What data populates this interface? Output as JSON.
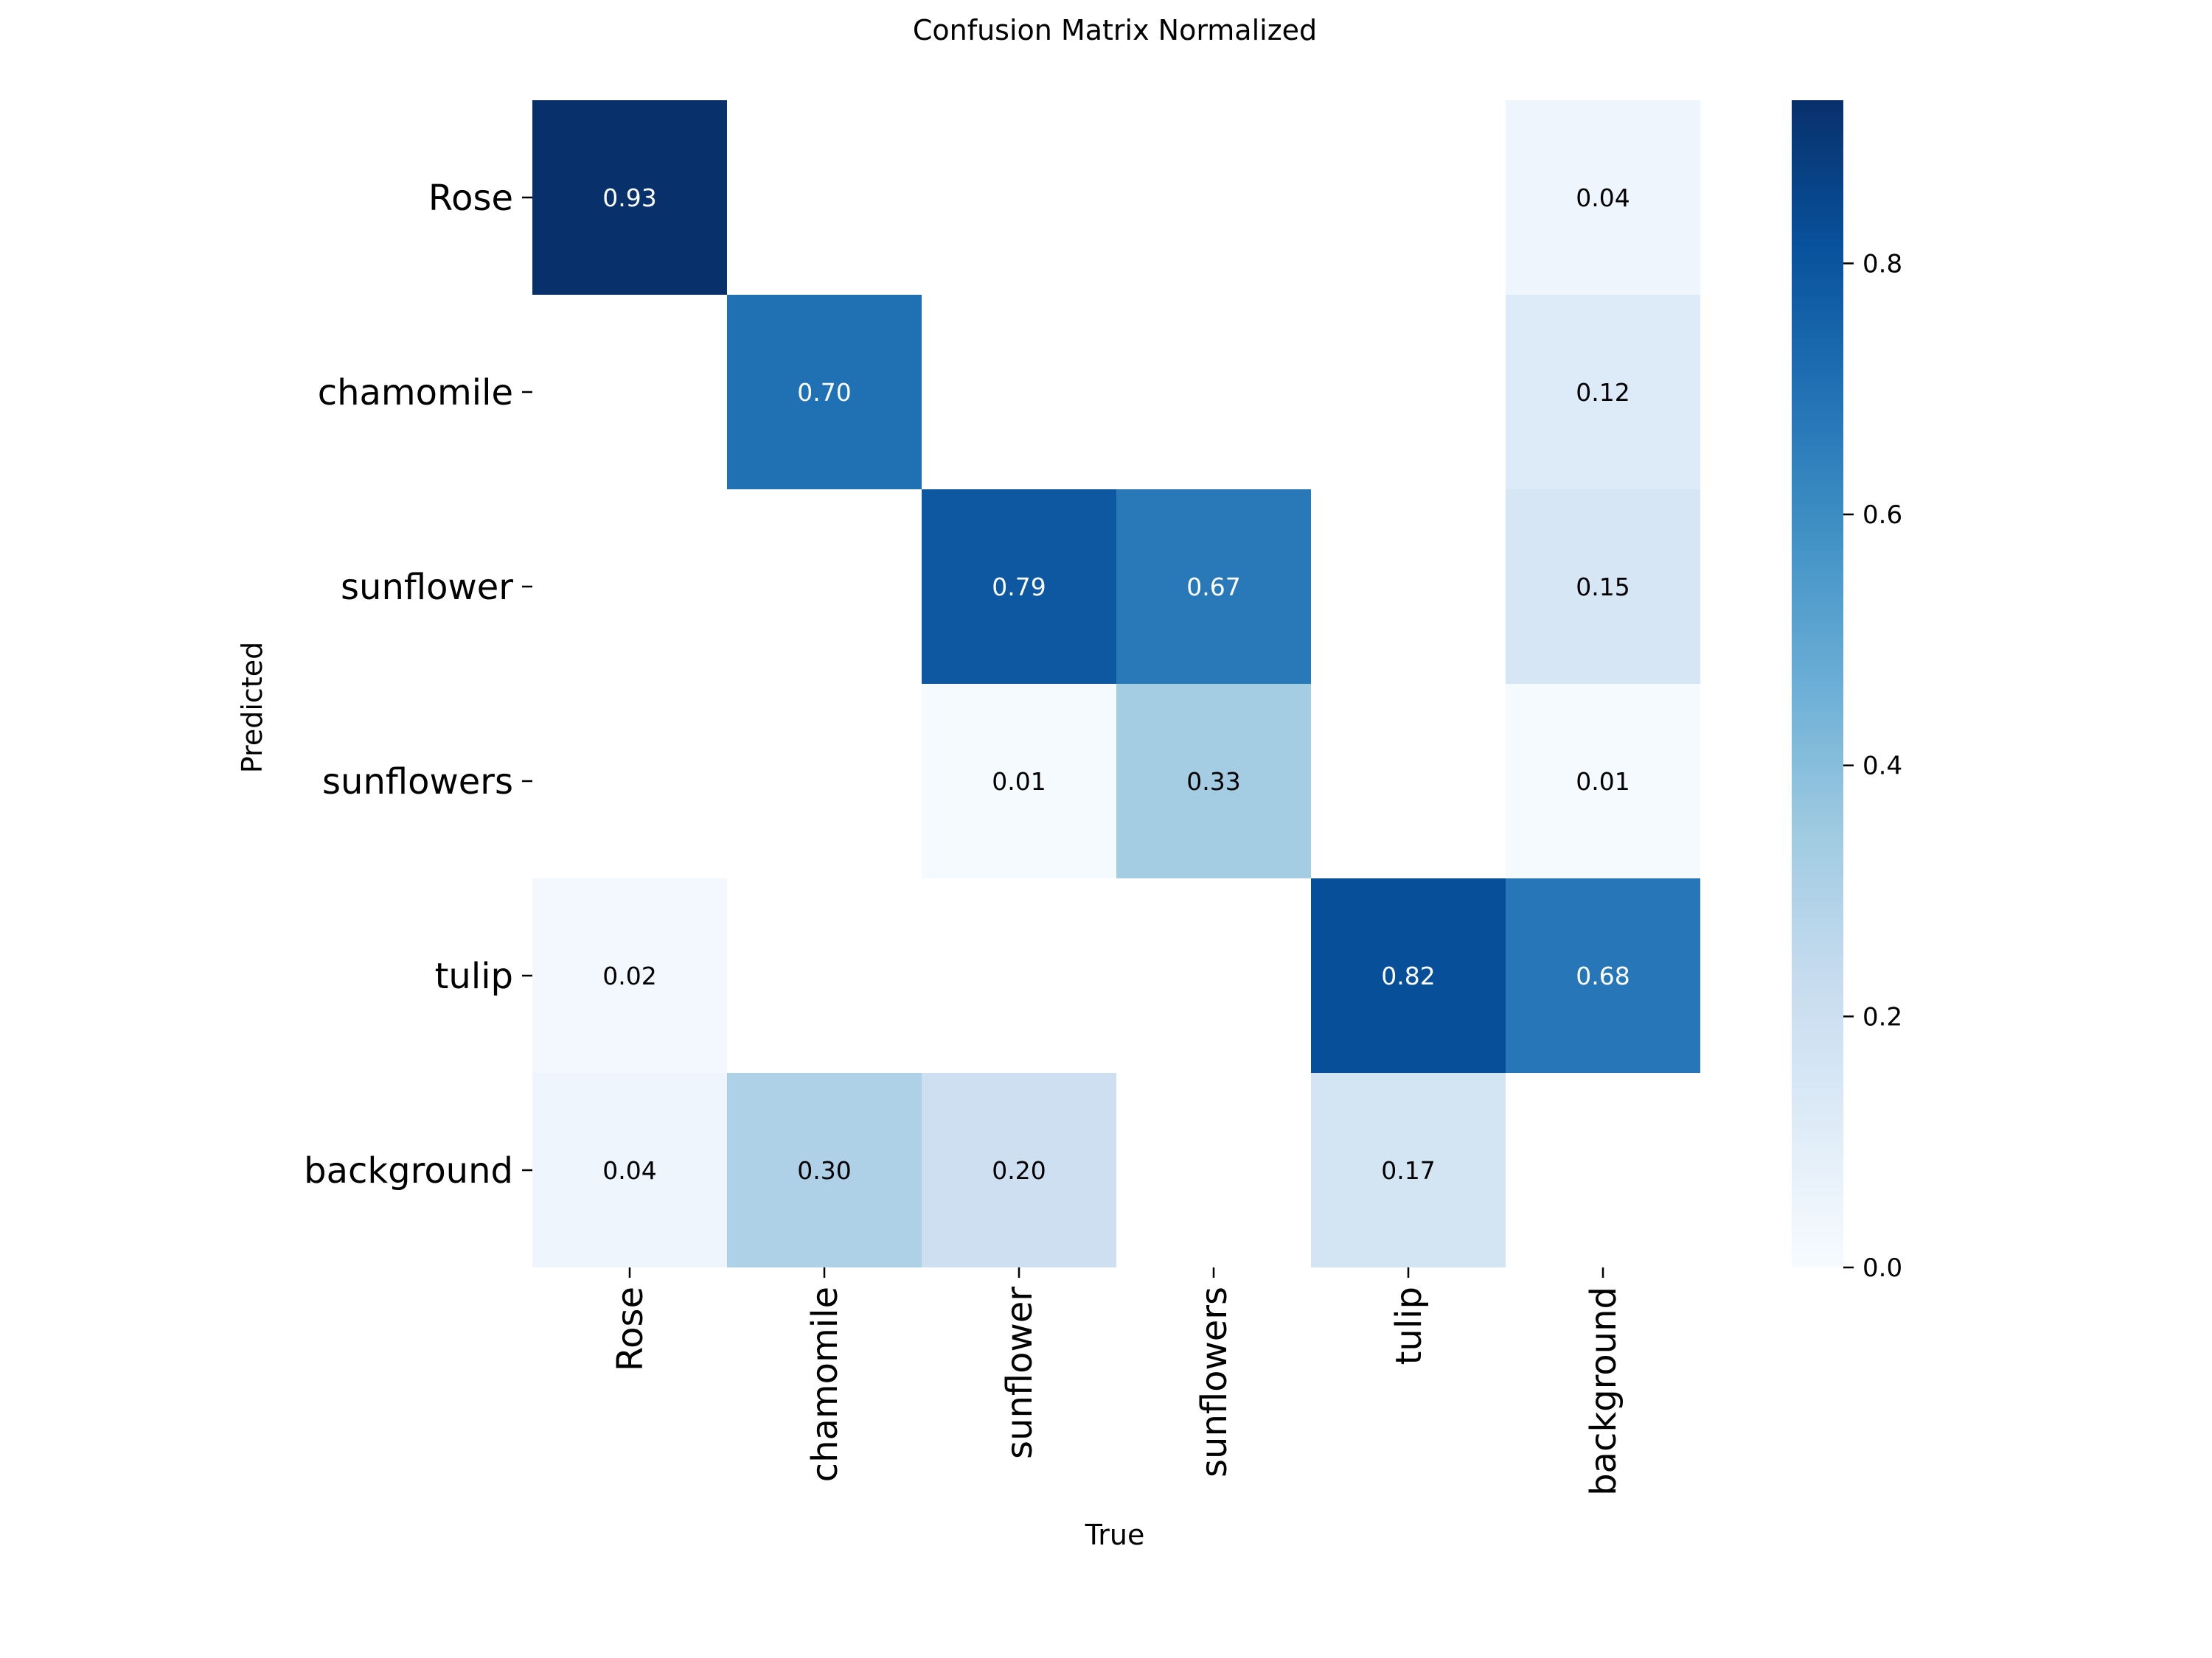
{
  "chart_data": {
    "type": "heatmap",
    "title": "Confusion Matrix Normalized",
    "xlabel": "True",
    "ylabel": "Predicted",
    "x_categories": [
      "Rose",
      "chamomile",
      "sunflower",
      "sunflowers",
      "tulip",
      "background"
    ],
    "y_categories": [
      "Rose",
      "chamomile",
      "sunflower",
      "sunflowers",
      "tulip",
      "background"
    ],
    "values": [
      [
        0.93,
        null,
        null,
        null,
        null,
        0.04
      ],
      [
        null,
        0.7,
        null,
        null,
        null,
        0.12
      ],
      [
        null,
        null,
        0.79,
        0.67,
        null,
        0.15
      ],
      [
        null,
        null,
        0.01,
        0.33,
        null,
        0.01
      ],
      [
        0.02,
        null,
        null,
        null,
        0.82,
        0.68
      ],
      [
        0.04,
        0.3,
        0.2,
        null,
        0.17,
        null
      ]
    ],
    "value_range": [
      0,
      0.93
    ],
    "colormap": "Blues",
    "colorbar": {
      "ticks": [
        0.0,
        0.2,
        0.4,
        0.6,
        0.8
      ],
      "tick_labels": [
        "0.0",
        "0.2",
        "0.4",
        "0.6",
        "0.8"
      ]
    }
  }
}
